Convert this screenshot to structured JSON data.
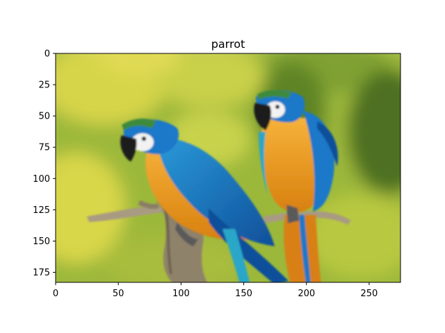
{
  "chart_data": {
    "type": "image",
    "title": "parrot",
    "image_subject": "two blue-and-yellow macaws perched on a branch against a blurred green background",
    "image_size": {
      "width": 275,
      "height": 183
    },
    "xlim": [
      0,
      275
    ],
    "ylim": [
      183,
      0
    ],
    "x_ticks": [
      0,
      50,
      100,
      150,
      200,
      250
    ],
    "y_ticks": [
      0,
      25,
      50,
      75,
      100,
      125,
      150,
      175
    ],
    "grid": false,
    "colors": {
      "background_light": "#dcd84a",
      "background_mid": "#9cb83a",
      "background_dark": "#4e6f22",
      "feather_blue": "#1e78c8",
      "feather_blue_dark": "#0f4f9a",
      "feather_teal": "#2aa6c8",
      "chest_orange": "#f0a020",
      "chest_orange_dark": "#d88012",
      "face_white": "#f2f2f2",
      "beak_black": "#1c1c1c",
      "branch": "#a89b82",
      "branch_dark": "#6f6350",
      "crown_green": "#3c8a3c"
    }
  }
}
